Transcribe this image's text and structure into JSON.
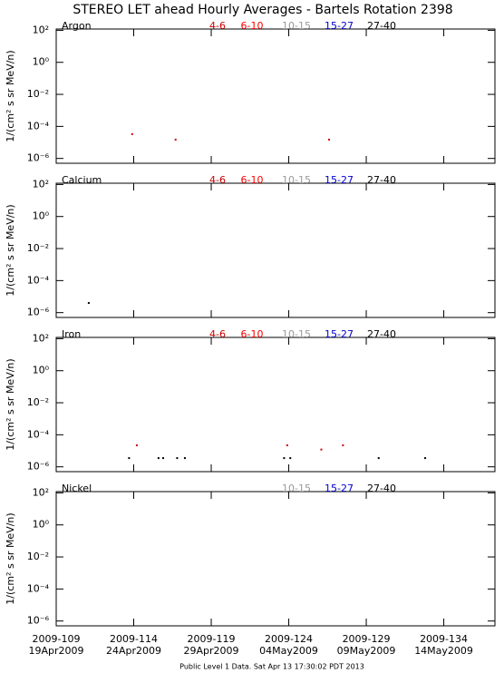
{
  "title": "STEREO LET ahead Hourly Averages - Bartels Rotation 2398",
  "footer": "Public Level 1 Data. Sat Apr 13 17:30:02 PDT 2013",
  "xaxis": {
    "ticks": [
      {
        "value": 109,
        "label": "2009-109"
      },
      {
        "value": 114,
        "label": "2009-114"
      },
      {
        "value": 119,
        "label": "2009-119"
      },
      {
        "value": 124,
        "label": "2009-124"
      },
      {
        "value": 129,
        "label": "2009-129"
      },
      {
        "value": 134,
        "label": "2009-134"
      }
    ],
    "sublabels": [
      "19Apr2009",
      "24Apr2009",
      "29Apr2009",
      "04May2009",
      "09May2009",
      "14May2009"
    ]
  },
  "chart_data": [
    {
      "type": "scatter",
      "label": "Argon",
      "ylabel": "1/(cm² s sr MeV/n)",
      "log_y": true,
      "xlim": [
        109,
        137.3
      ],
      "xticks": [
        109,
        114,
        119,
        124,
        129,
        134
      ],
      "ylim": [
        5e-07,
        120
      ],
      "yticks": [
        {
          "value": 100,
          "label": "10²"
        },
        {
          "value": 1,
          "label": "10⁰"
        },
        {
          "value": 0.01,
          "label": "10⁻²"
        },
        {
          "value": 0.0001,
          "label": "10⁻⁴"
        },
        {
          "value": 1e-06,
          "label": "10⁻⁶"
        }
      ],
      "series": [
        {
          "name": "4-6",
          "color": "#cc0000",
          "x": [
            113.9,
            116.7,
            126.6
          ],
          "values": [
            3.3e-05,
            1.5e-05,
            1.5e-05
          ]
        },
        {
          "name": "6-10",
          "color": "#ff0000",
          "x": [],
          "values": []
        },
        {
          "name": "10-15",
          "color": "#999999",
          "x": [],
          "values": []
        },
        {
          "name": "15-27",
          "color": "#0000cc",
          "x": [],
          "values": []
        },
        {
          "name": "27-40",
          "color": "#000000",
          "x": [],
          "values": []
        }
      ]
    },
    {
      "type": "scatter",
      "label": "Calcium",
      "ylabel": "1/(cm² s sr MeV/n)",
      "log_y": true,
      "xlim": [
        109,
        137.3
      ],
      "xticks": [
        109,
        114,
        119,
        124,
        129,
        134
      ],
      "ylim": [
        5e-07,
        120
      ],
      "yticks": [
        {
          "value": 100,
          "label": "10²"
        },
        {
          "value": 1,
          "label": "10⁰"
        },
        {
          "value": 0.01,
          "label": "10⁻²"
        },
        {
          "value": 0.0001,
          "label": "10⁻⁴"
        },
        {
          "value": 1e-06,
          "label": "10⁻⁶"
        }
      ],
      "series": [
        {
          "name": "4-6",
          "color": "#cc0000",
          "x": [],
          "values": []
        },
        {
          "name": "6-10",
          "color": "#ff0000",
          "x": [],
          "values": []
        },
        {
          "name": "10-15",
          "color": "#999999",
          "x": [],
          "values": []
        },
        {
          "name": "15-27",
          "color": "#0000cc",
          "x": [],
          "values": []
        },
        {
          "name": "27-40",
          "color": "#000000",
          "x": [
            111.1
          ],
          "values": [
            4e-06
          ]
        }
      ]
    },
    {
      "type": "scatter",
      "label": "Iron",
      "ylabel": "1/(cm² s sr MeV/n)",
      "log_y": true,
      "xlim": [
        109,
        137.3
      ],
      "xticks": [
        109,
        114,
        119,
        124,
        129,
        134
      ],
      "ylim": [
        5e-07,
        120
      ],
      "yticks": [
        {
          "value": 100,
          "label": "10²"
        },
        {
          "value": 1,
          "label": "10⁰"
        },
        {
          "value": 0.01,
          "label": "10⁻²"
        },
        {
          "value": 0.0001,
          "label": "10⁻⁴"
        },
        {
          "value": 1e-06,
          "label": "10⁻⁶"
        }
      ],
      "series": [
        {
          "name": "4-6",
          "color": "#cc0000",
          "x": [
            114.2,
            123.9,
            126.1,
            127.5
          ],
          "values": [
            2.2e-05,
            2.2e-05,
            1.2e-05,
            2.2e-05
          ]
        },
        {
          "name": "6-10",
          "color": "#ff0000",
          "x": [],
          "values": []
        },
        {
          "name": "10-15",
          "color": "#999999",
          "x": [],
          "values": []
        },
        {
          "name": "15-27",
          "color": "#0000cc",
          "x": [],
          "values": []
        },
        {
          "name": "27-40",
          "color": "#000000",
          "x": [
            113.7,
            115.6,
            115.9,
            116.8,
            117.3,
            123.7,
            124.1,
            129.8,
            132.8
          ],
          "values": [
            3.5e-06,
            3.5e-06,
            3.5e-06,
            3.5e-06,
            3.5e-06,
            3.5e-06,
            3.5e-06,
            3.5e-06,
            3.5e-06
          ]
        }
      ]
    },
    {
      "type": "scatter",
      "label": "Nickel",
      "ylabel": "1/(cm² s sr MeV/n)",
      "log_y": true,
      "xlim": [
        109,
        137.3
      ],
      "xticks": [
        109,
        114,
        119,
        124,
        129,
        134
      ],
      "ylim": [
        5e-07,
        120
      ],
      "yticks": [
        {
          "value": 100,
          "label": "10²"
        },
        {
          "value": 1,
          "label": "10⁰"
        },
        {
          "value": 0.01,
          "label": "10⁻²"
        },
        {
          "value": 0.0001,
          "label": "10⁻⁴"
        },
        {
          "value": 1e-06,
          "label": "10⁻⁶"
        }
      ],
      "series": [
        {
          "name": "10-15",
          "color": "#999999",
          "x": [],
          "values": []
        },
        {
          "name": "15-27",
          "color": "#0000cc",
          "x": [],
          "values": []
        },
        {
          "name": "27-40",
          "color": "#000000",
          "x": [],
          "values": []
        }
      ]
    }
  ]
}
